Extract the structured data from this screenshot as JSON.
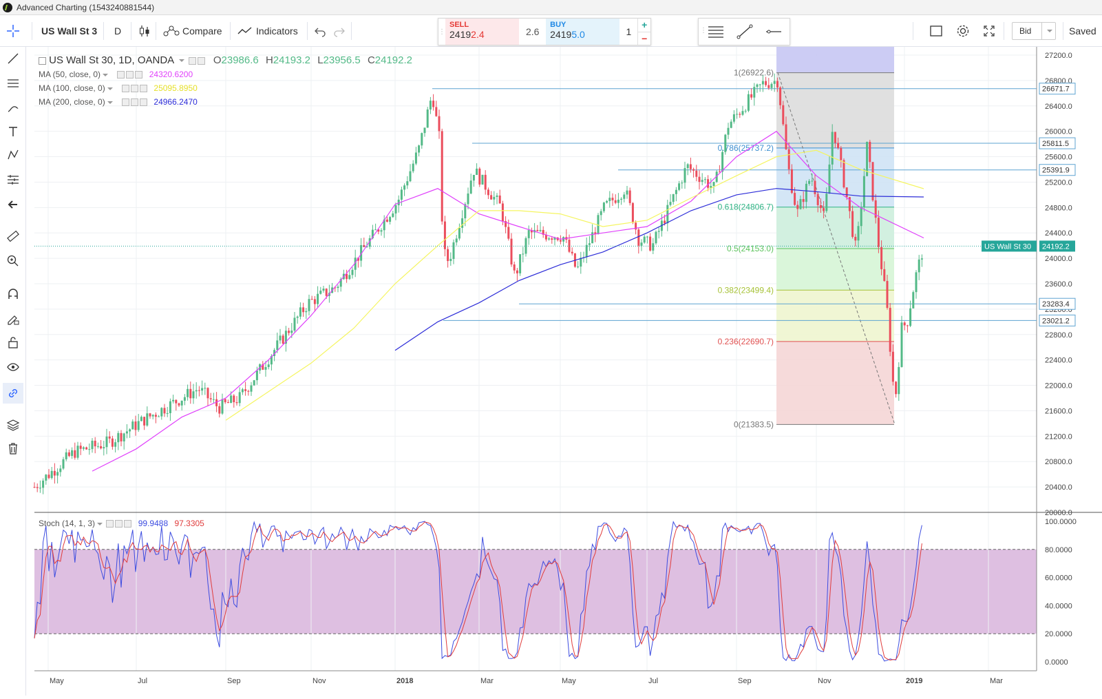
{
  "window": {
    "title": "Advanced Charting (1543240881544)"
  },
  "toolbar": {
    "symbol": "US Wall St 3",
    "interval": "D",
    "compare_label": "Compare",
    "indicators_label": "Indicators",
    "price_type": "Bid",
    "saved_label": "Saved"
  },
  "trade": {
    "sell_label": "SELL",
    "sell_price_small": "2419",
    "sell_price_big": "2.4",
    "spread": "2.6",
    "buy_label": "BUY",
    "buy_price_small": "2419",
    "buy_price_big": "5.0",
    "quantity": "1",
    "plus": "+",
    "minus": "−"
  },
  "legend": {
    "main_title": "US Wall St 30, 1D, OANDA",
    "ohlc": {
      "o_label": "O",
      "o": "23986.6",
      "h_label": "H",
      "h": "24193.2",
      "l_label": "L",
      "l": "23956.5",
      "c_label": "C",
      "c": "24192.2"
    },
    "ma50_label": "MA (50, close, 0)",
    "ma50_value": "24320.6200",
    "ma100_label": "MA (100, close, 0)",
    "ma100_value": "25095.8950",
    "ma200_label": "MA (200, close, 0)",
    "ma200_value": "24966.2470",
    "stoch_label": "Stoch (14, 1, 3)",
    "stoch_k": "99.9488",
    "stoch_d": "97.3305"
  },
  "colors": {
    "up": "#53b987",
    "down": "#eb4d5c",
    "ma50": "#e040fb",
    "ma100": "#f5f560",
    "ma200": "#2d2dd8",
    "stoch_k": "#3c4ce0",
    "stoch_d": "#e03c3c",
    "stoch_band": "#d8b4dc",
    "fib_line": "#5da3d1",
    "crosshair": "#26a69a"
  },
  "price_axis": [
    "27200.0",
    "26800.0",
    "26400.0",
    "26000.0",
    "25600.0",
    "25200.0",
    "24800.0",
    "24400.0",
    "24000.0",
    "23600.0",
    "23200.0",
    "22800.0",
    "22400.0",
    "22000.0",
    "21600.0",
    "21200.0",
    "20800.0",
    "20400.0",
    "20000.0"
  ],
  "price_markers": [
    "26671.7",
    "25811.5",
    "25391.9",
    "23283.4",
    "23021.2"
  ],
  "current_price_label": {
    "name": "US Wall St 30",
    "value": "24192.2"
  },
  "stoch_axis": [
    "100.0000",
    "80.0000",
    "60.0000",
    "40.0000",
    "20.0000",
    "0.0000"
  ],
  "time_axis": [
    "May",
    "Jul",
    "Sep",
    "Nov",
    "2018",
    "Mar",
    "May",
    "Jul",
    "Sep",
    "Nov",
    "2019",
    "Mar"
  ],
  "fibonacci": [
    {
      "label": "1(26922.6)",
      "price": 26922.6
    },
    {
      "label": "0.786(25737.2)",
      "price": 25737.2
    },
    {
      "label": "0.618(24806.7)",
      "price": 24806.7
    },
    {
      "label": "0.5(24153.0)",
      "price": 24153.0
    },
    {
      "label": "0.382(23499.4)",
      "price": 23499.4
    },
    {
      "label": "0.236(22690.7)",
      "price": 22690.7
    },
    {
      "label": "0(21383.5)",
      "price": 21383.5
    }
  ],
  "chart_data": {
    "type": "line",
    "title": "US Wall St 30, 1D, OANDA",
    "ylim": [
      20000,
      27300
    ],
    "x": [
      "May 2017",
      "Jun 2017",
      "Jul 2017",
      "Aug 2017",
      "Sep 2017",
      "Oct 2017",
      "Nov 2017",
      "Dec 2017",
      "Jan 2018",
      "Feb 2018",
      "Mar 2018",
      "Apr 2018",
      "May 2018",
      "Jun 2018",
      "Jul 2018",
      "Aug 2018",
      "Sep 2018",
      "Oct 2018",
      "Nov 2018",
      "Dec 2018",
      "Jan 2019"
    ],
    "series": [
      {
        "name": "US Wall St 30",
        "values": [
          20950,
          21300,
          21600,
          21950,
          22350,
          23350,
          24200,
          24750,
          26400,
          24300,
          24050,
          23800,
          24550,
          24300,
          24950,
          25900,
          26450,
          25050,
          25550,
          22700,
          24192.2
        ]
      },
      {
        "name": "MA (50, close, 0)",
        "values": [
          null,
          20650,
          21000,
          21500,
          21800,
          22400,
          23100,
          23900,
          24850,
          25100,
          24700,
          24500,
          24300,
          24400,
          24500,
          24900,
          25600,
          26000,
          25300,
          24800,
          24320.6
        ]
      },
      {
        "name": "MA (100, close, 0)",
        "values": [
          null,
          null,
          null,
          null,
          21450,
          21900,
          22350,
          22900,
          23600,
          24200,
          24750,
          24750,
          24700,
          24500,
          24600,
          24950,
          25300,
          25600,
          25700,
          25400,
          25095.9
        ]
      },
      {
        "name": "MA (200, close, 0)",
        "values": [
          null,
          null,
          null,
          null,
          null,
          null,
          null,
          null,
          22550,
          23000,
          23300,
          23650,
          23900,
          24100,
          24400,
          24750,
          25000,
          25100,
          25050,
          24980,
          24966.2
        ]
      }
    ]
  }
}
